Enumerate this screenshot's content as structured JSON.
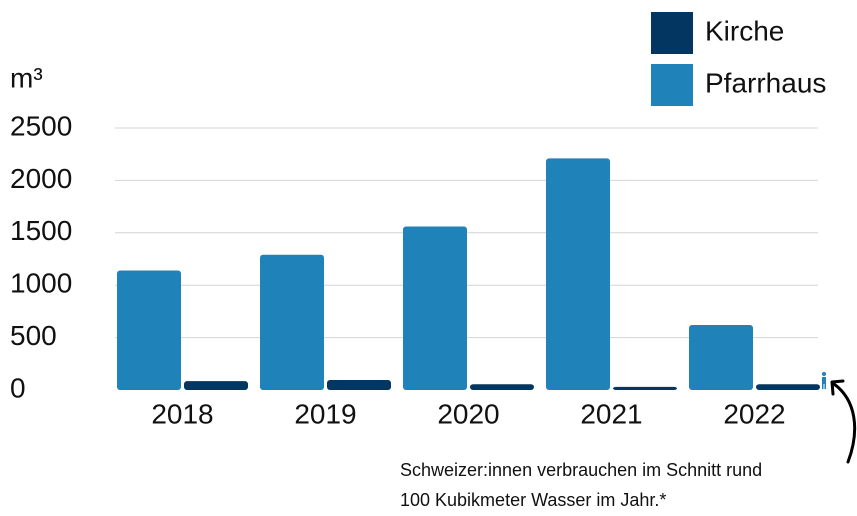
{
  "chart_data": {
    "type": "bar",
    "unit_label": "m³",
    "categories": [
      "2018",
      "2019",
      "2020",
      "2021",
      "2022"
    ],
    "series": [
      {
        "name": "Pfarrhaus",
        "color": "#1f82b8",
        "values": [
          1140,
          1290,
          1560,
          2210,
          620
        ]
      },
      {
        "name": "Kirche",
        "color": "#033660",
        "values": [
          85,
          95,
          55,
          30,
          55
        ]
      }
    ],
    "legend_order": [
      "Kirche",
      "Pfarrhaus"
    ],
    "ylim": [
      0,
      2500
    ],
    "yticks": [
      0,
      500,
      1000,
      1500,
      2000,
      2500
    ],
    "grid": true,
    "annotation": [
      "Schweizer:innen verbrauchen im Schnitt rund",
      "100 Kubikmeter Wasser im Jahr.*"
    ]
  }
}
